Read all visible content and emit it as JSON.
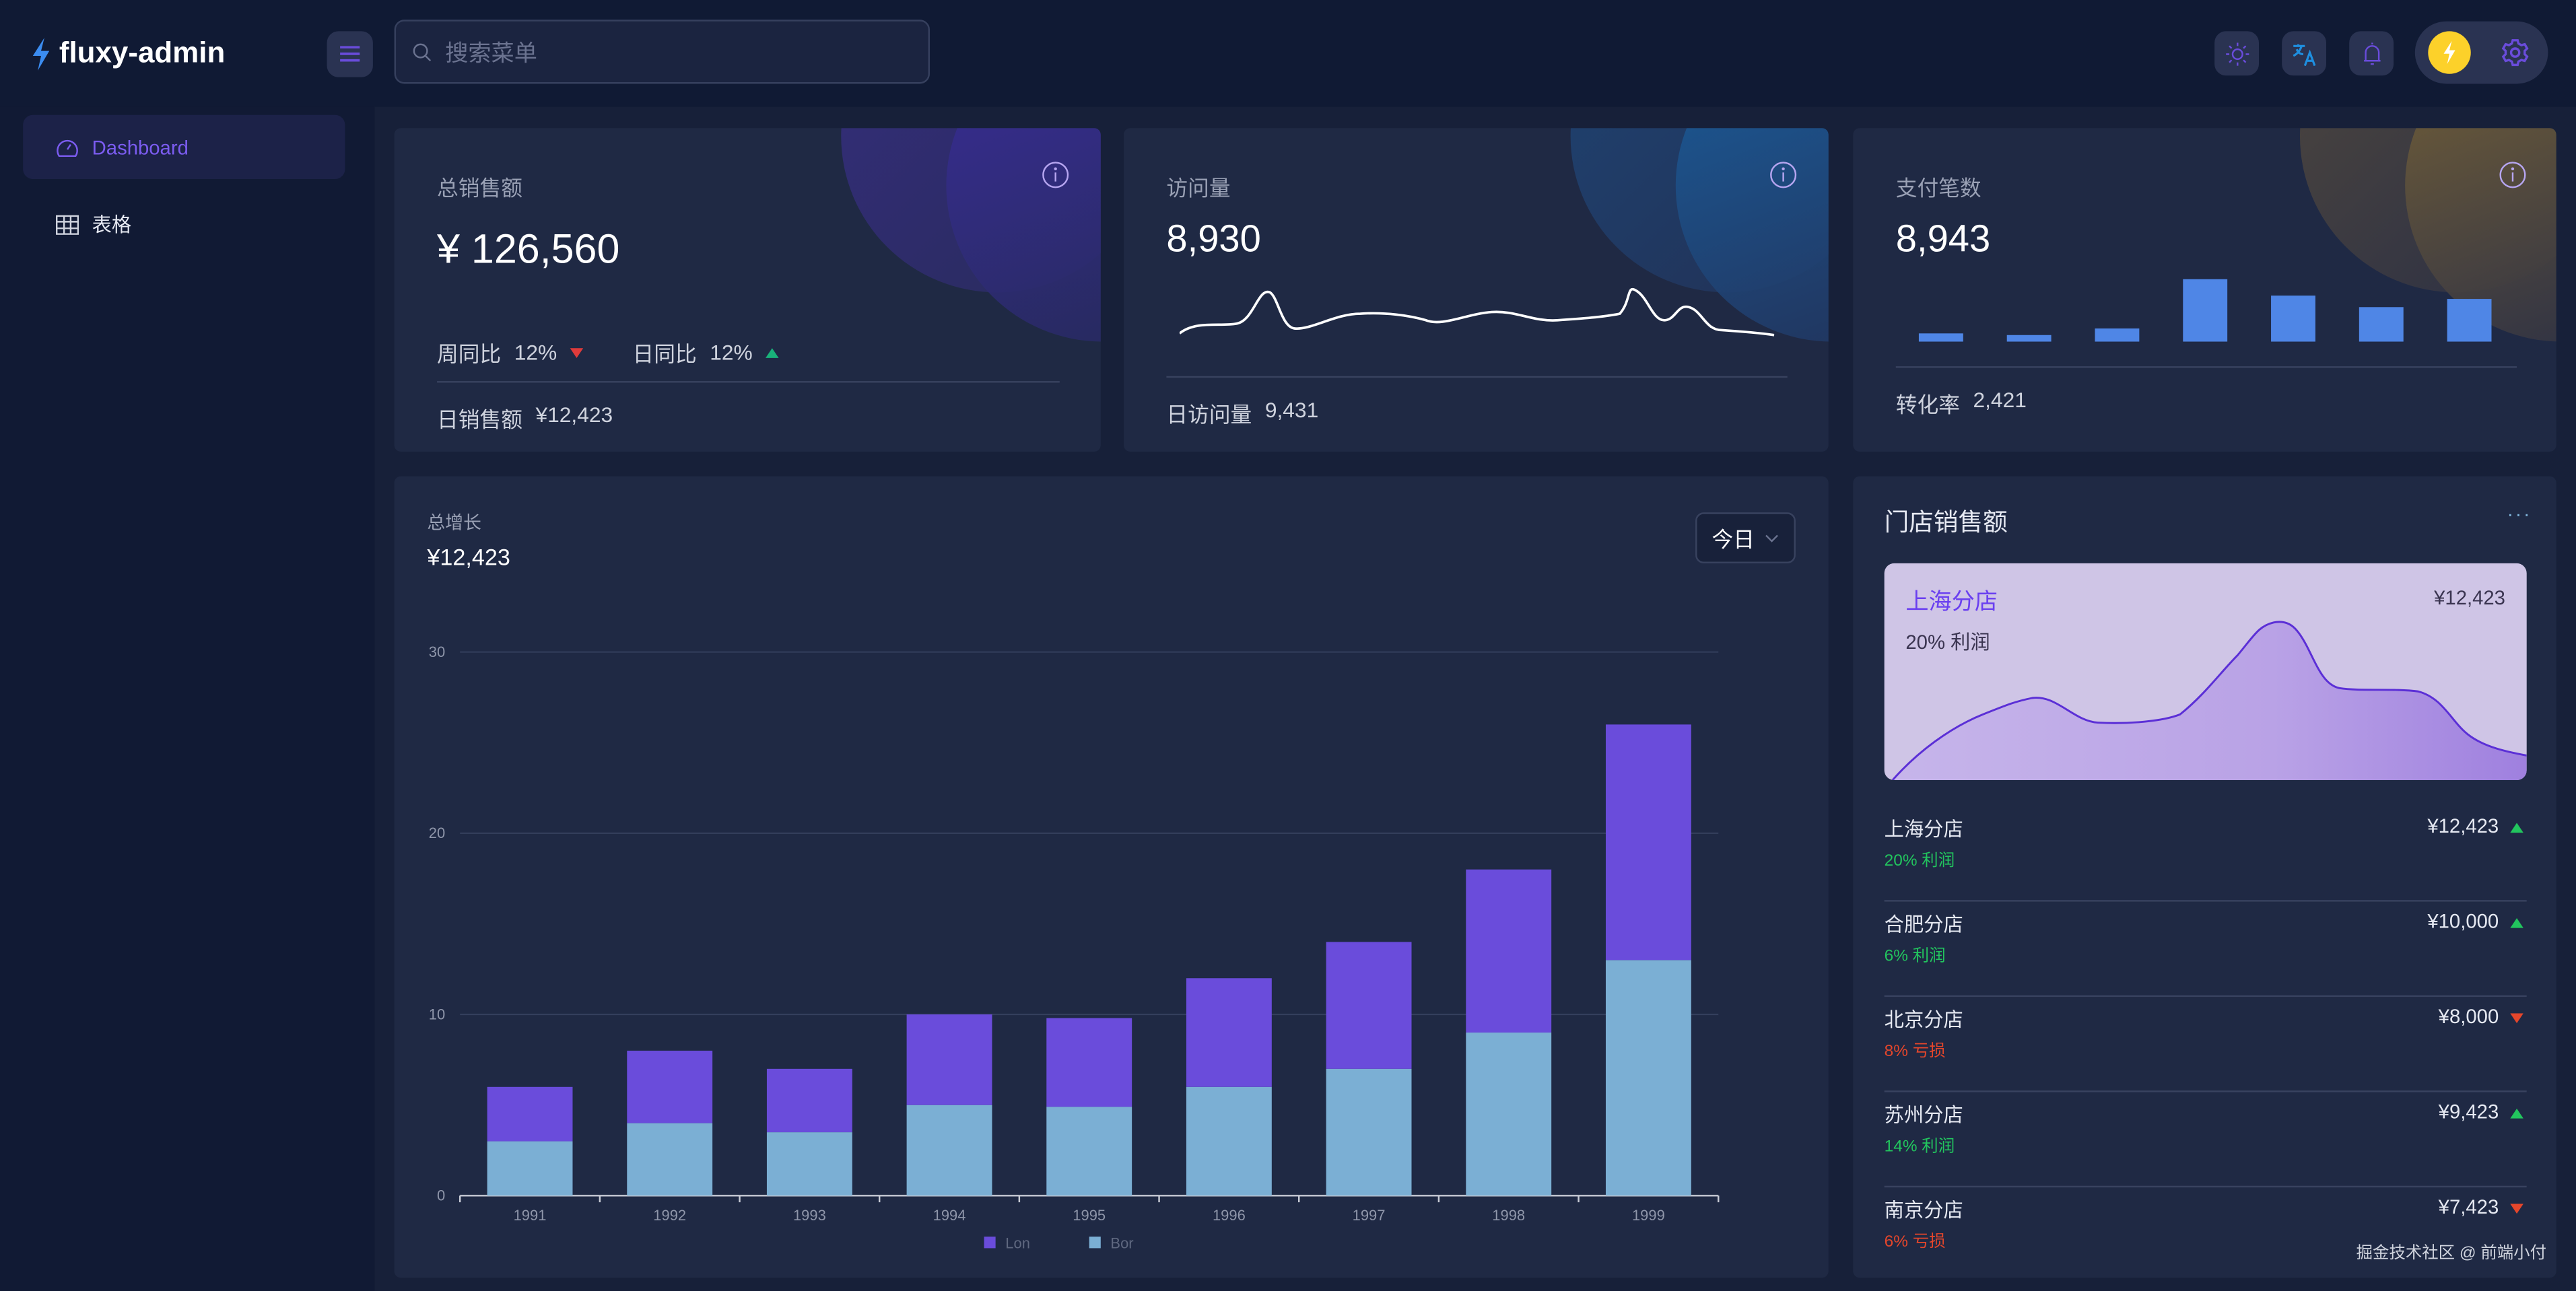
{
  "app": {
    "name": "fluxy-admin"
  },
  "header": {
    "search_placeholder": "搜索菜单",
    "icons": [
      "menu-icon",
      "search-icon",
      "sun-icon",
      "translate-icon",
      "bell-icon",
      "lightning-avatar",
      "gear-icon"
    ]
  },
  "sidebar": {
    "items": [
      {
        "label": "Dashboard",
        "icon": "dashboard-icon",
        "active": true
      },
      {
        "label": "表格",
        "icon": "table-icon",
        "active": false
      }
    ]
  },
  "cards": {
    "sales": {
      "title": "总销售额",
      "value": "¥ 126,560",
      "week_label": "周同比",
      "week_value": "12%",
      "week_trend": "down",
      "day_label": "日同比",
      "day_value": "12%",
      "day_trend": "up",
      "footer_label": "日销售额",
      "footer_value": "¥12,423"
    },
    "visits": {
      "title": "访问量",
      "value": "8,930",
      "footer_label": "日访问量",
      "footer_value": "9,431"
    },
    "payments": {
      "title": "支付笔数",
      "value": "8,943",
      "footer_label": "转化率",
      "footer_value": "2,421",
      "bars": [
        5,
        4,
        8,
        38,
        28,
        21,
        26
      ]
    }
  },
  "growth": {
    "title": "总增长",
    "value": "¥12,423",
    "select_value": "今日"
  },
  "chart_data": {
    "type": "bar",
    "stacked": true,
    "categories": [
      "1991",
      "1992",
      "1993",
      "1994",
      "1995",
      "1996",
      "1997",
      "1998",
      "1999"
    ],
    "series": [
      {
        "name": "Lon",
        "color": "#6a4cdb",
        "values": [
          3,
          4,
          3.5,
          5,
          4.9,
          6,
          7,
          9,
          13
        ]
      },
      {
        "name": "Bor",
        "color": "#7bafd4",
        "values": [
          3,
          4,
          3.5,
          5,
          4.9,
          6,
          7,
          9,
          13
        ]
      }
    ],
    "yticks": [
      "0",
      "10",
      "20",
      "30"
    ],
    "ylim": [
      0,
      30
    ],
    "grid": true,
    "legend": "bottom"
  },
  "stores": {
    "title": "门店销售额",
    "highlight": {
      "name": "上海分店",
      "value": "¥12,423",
      "profit": "20% 利润"
    },
    "items": [
      {
        "name": "上海分店",
        "value": "¥12,423",
        "note": "20% 利润",
        "trend": "up"
      },
      {
        "name": "合肥分店",
        "value": "¥10,000",
        "note": "6% 利润",
        "trend": "up"
      },
      {
        "name": "北京分店",
        "value": "¥8,000",
        "note": "8% 亏损",
        "trend": "down"
      },
      {
        "name": "苏州分店",
        "value": "¥9,423",
        "note": "14% 利润",
        "trend": "up"
      },
      {
        "name": "南京分店",
        "value": "¥7,423",
        "note": "6% 亏损",
        "trend": "down"
      }
    ]
  },
  "watermark": "掘金技术社区 @ 前端小付",
  "colors": {
    "accent": "#6a4cdb",
    "up": "#22c55e",
    "down": "#e5462b",
    "card": "#1f2944"
  }
}
